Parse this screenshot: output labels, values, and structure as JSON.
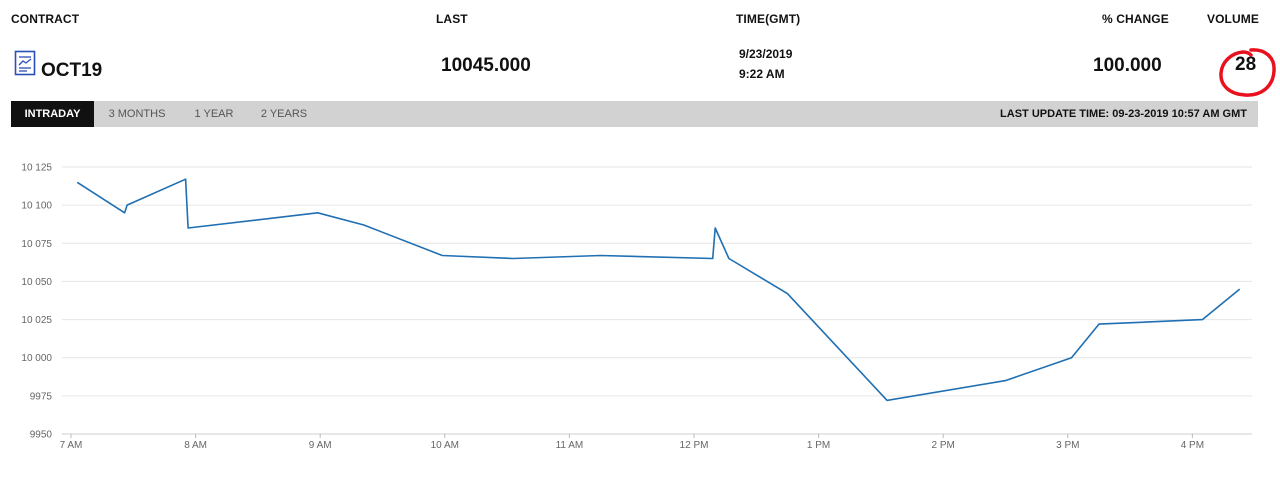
{
  "header": {
    "contract_label": "CONTRACT",
    "last_label": "LAST",
    "time_label": "TIME(GMT)",
    "change_label": "% CHANGE",
    "volume_label": "VOLUME"
  },
  "quote": {
    "contract": "OCT19",
    "contract_icon": "document-chart-icon",
    "last": "10045.000",
    "date": "9/23/2019",
    "time": "9:22 AM",
    "change": "100.000",
    "volume": "28"
  },
  "annotation": {
    "volume_circle_color": "#e8121e"
  },
  "tabs": [
    {
      "label": "INTRADAY",
      "active": true
    },
    {
      "label": "3 MONTHS",
      "active": false
    },
    {
      "label": "1 YEAR",
      "active": false
    },
    {
      "label": "2 YEARS",
      "active": false
    }
  ],
  "last_update": "LAST UPDATE TIME: 09-23-2019 10:57 AM GMT",
  "colors": {
    "line": "#1f6fb2",
    "grid": "#e6e6e6",
    "tabbar": "#d2d2d2",
    "active_tab": "#111111"
  },
  "chart_data": {
    "type": "line",
    "title": "",
    "xlabel": "",
    "ylabel": "",
    "ylim": [
      9950,
      10125
    ],
    "xlim": [
      7.0,
      16.45
    ],
    "grid": true,
    "x_tick_labels": [
      "7 AM",
      "8 AM",
      "9 AM",
      "10 AM",
      "11 AM",
      "12 PM",
      "1 PM",
      "2 PM",
      "3 PM",
      "4 PM"
    ],
    "x_tick_hours": [
      7,
      8,
      9,
      10,
      11,
      12,
      13,
      14,
      15,
      16
    ],
    "y_tick_labels": [
      "10 125",
      "10 100",
      "10 075",
      "10 050",
      "10 025",
      "10 000",
      "9975",
      "9950"
    ],
    "y_ticks": [
      10125,
      10100,
      10075,
      10050,
      10025,
      10000,
      9975,
      9950
    ],
    "series": [
      {
        "x_hours": [
          7.05,
          7.43,
          7.45,
          7.92,
          7.94,
          8.98,
          9.35,
          9.98,
          10.55,
          11.25,
          12.15,
          12.17,
          12.28,
          12.75,
          13.55,
          14.5,
          15.03,
          15.25,
          16.08,
          16.38
        ],
        "values": [
          10115,
          10095,
          10100,
          10117,
          10085,
          10095,
          10087,
          10067,
          10065,
          10067,
          10065,
          10085,
          10065,
          10042,
          9972,
          9985,
          10000,
          10022,
          10025,
          10045
        ]
      }
    ]
  }
}
